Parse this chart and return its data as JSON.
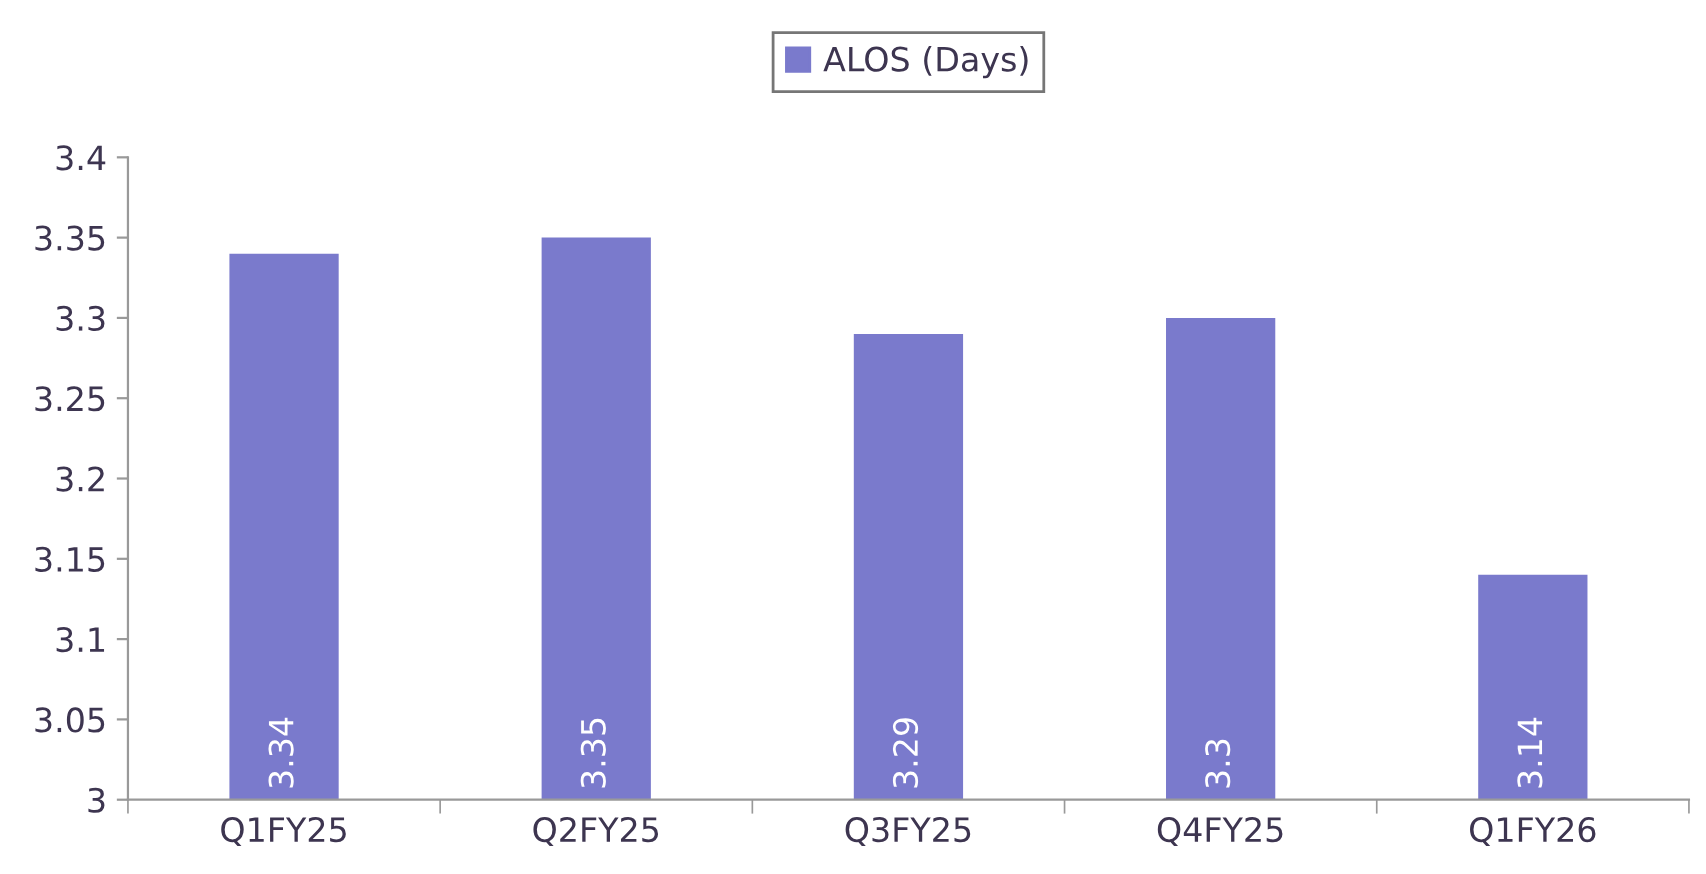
{
  "chart_data": {
    "type": "bar",
    "categories": [
      "Q1FY25",
      "Q2FY25",
      "Q3FY25",
      "Q4FY25",
      "Q1FY26"
    ],
    "series": [
      {
        "name": "ALOS (Days)",
        "color": "#7a7acc",
        "values": [
          3.34,
          3.35,
          3.29,
          3.3,
          3.14
        ]
      }
    ],
    "ylim": [
      3,
      3.4
    ],
    "yticks": [
      3,
      3.05,
      3.1,
      3.15,
      3.2,
      3.25,
      3.3,
      3.35,
      3.4
    ],
    "grid": false,
    "legend": "top",
    "data_labels": true
  }
}
